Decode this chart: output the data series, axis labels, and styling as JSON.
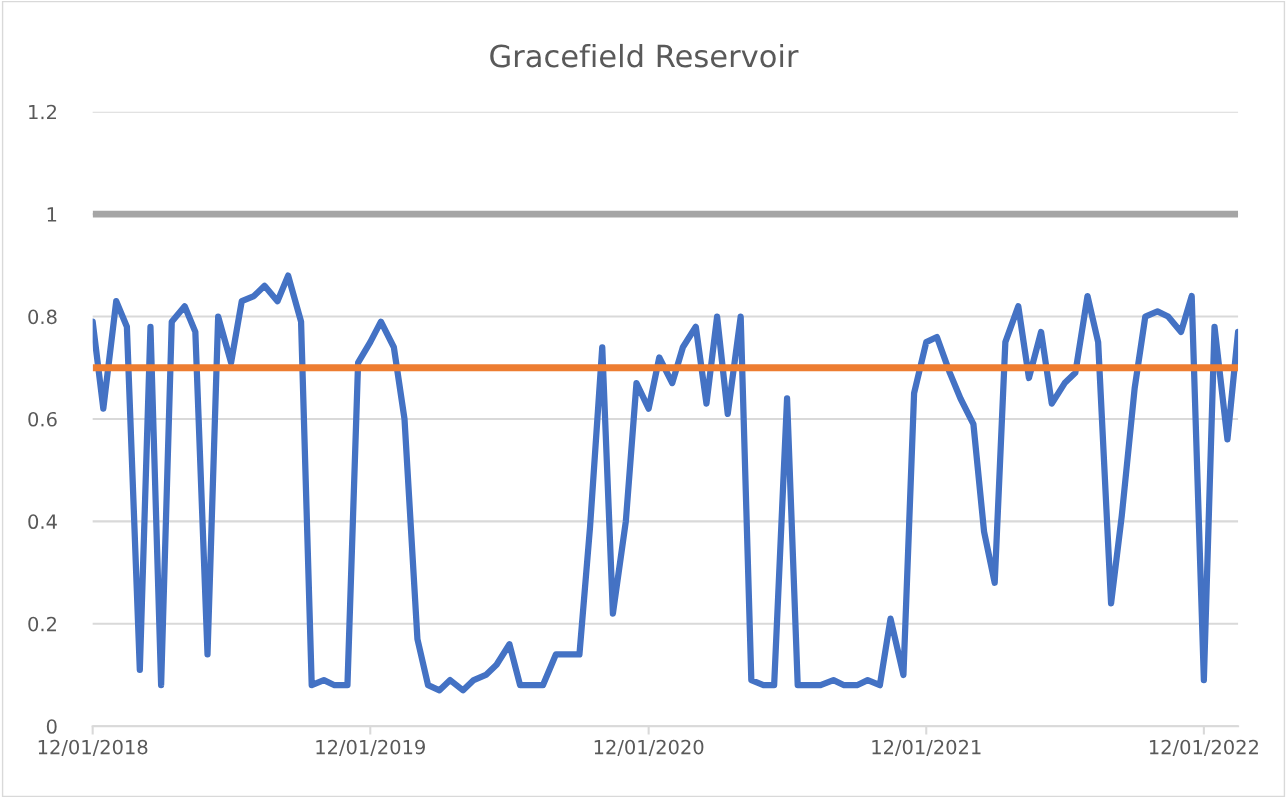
{
  "chart_data": {
    "type": "line",
    "title": "Gracefield Reservoir",
    "x": [
      "2018-12-01",
      "2018-12-15",
      "2019-01-01",
      "2019-01-15",
      "2019-02-01",
      "2019-02-15",
      "2019-03-01",
      "2019-03-15",
      "2019-04-01",
      "2019-04-15",
      "2019-05-01",
      "2019-05-15",
      "2019-06-01",
      "2019-06-15",
      "2019-07-01",
      "2019-07-15",
      "2019-08-01",
      "2019-08-15",
      "2019-09-01",
      "2019-09-15",
      "2019-10-01",
      "2019-10-15",
      "2019-11-01",
      "2019-11-15",
      "2019-12-01",
      "2019-12-15",
      "2020-01-01",
      "2020-01-15",
      "2020-02-01",
      "2020-02-15",
      "2020-03-01",
      "2020-03-15",
      "2020-04-01",
      "2020-04-15",
      "2020-05-01",
      "2020-05-15",
      "2020-06-01",
      "2020-06-15",
      "2020-07-01",
      "2020-07-15",
      "2020-08-01",
      "2020-08-15",
      "2020-09-01",
      "2020-09-15",
      "2020-10-01",
      "2020-10-15",
      "2020-11-01",
      "2020-11-15",
      "2020-12-01",
      "2020-12-15",
      "2021-01-01",
      "2021-01-15",
      "2021-02-01",
      "2021-02-15",
      "2021-03-01",
      "2021-03-15",
      "2021-04-01",
      "2021-04-15",
      "2021-05-01",
      "2021-05-15",
      "2021-06-01",
      "2021-06-15",
      "2021-07-01",
      "2021-07-15",
      "2021-08-01",
      "2021-08-15",
      "2021-09-01",
      "2021-09-15",
      "2021-10-01",
      "2021-10-15",
      "2021-11-01",
      "2021-11-15",
      "2021-12-01",
      "2021-12-15",
      "2022-01-01",
      "2022-01-15",
      "2022-02-01",
      "2022-02-15",
      "2022-03-01",
      "2022-03-15",
      "2022-04-01",
      "2022-04-15",
      "2022-05-01",
      "2022-05-15",
      "2022-06-01",
      "2022-06-15",
      "2022-07-01",
      "2022-07-15",
      "2022-08-01",
      "2022-08-15",
      "2022-09-01",
      "2022-09-15",
      "2022-10-01",
      "2022-10-15",
      "2022-11-01",
      "2022-11-15",
      "2022-12-01",
      "2022-12-15",
      "2023-01-01",
      "2023-01-15"
    ],
    "series": [
      {
        "color": "#4472c4",
        "values": [
          0.79,
          0.62,
          0.83,
          0.78,
          0.11,
          0.78,
          0.08,
          0.79,
          0.82,
          0.77,
          0.14,
          0.8,
          0.71,
          0.83,
          0.84,
          0.86,
          0.83,
          0.88,
          0.79,
          0.08,
          0.09,
          0.08,
          0.08,
          0.71,
          0.75,
          0.79,
          0.74,
          0.6,
          0.17,
          0.08,
          0.07,
          0.09,
          0.07,
          0.09,
          0.1,
          0.12,
          0.16,
          0.08,
          0.08,
          0.08,
          0.14,
          0.14,
          0.14,
          0.39,
          0.74,
          0.22,
          0.4,
          0.67,
          0.62,
          0.72,
          0.67,
          0.74,
          0.78,
          0.63,
          0.8,
          0.61,
          0.8,
          0.09,
          0.08,
          0.08,
          0.64,
          0.08,
          0.08,
          0.08,
          0.09,
          0.08,
          0.08,
          0.09,
          0.08,
          0.21,
          0.1,
          0.65,
          0.75,
          0.76,
          0.69,
          0.64,
          0.59,
          0.38,
          0.28,
          0.75,
          0.82,
          0.68,
          0.77,
          0.63,
          0.67,
          0.69,
          0.84,
          0.75,
          0.24,
          0.41,
          0.66,
          0.8,
          0.81,
          0.8,
          0.77,
          0.84,
          0.09,
          0.78,
          0.56,
          0.77
        ]
      }
    ],
    "ref_lines": [
      {
        "axis": "y",
        "value": 1,
        "color": "#a5a5a5"
      },
      {
        "axis": "y",
        "value": 0.7,
        "color": "#ed7d31"
      }
    ],
    "xlim": [
      "2018-12-01",
      "2023-01-15"
    ],
    "xticks": [
      {
        "value": "2018-12-01",
        "label": "12/01/2018"
      },
      {
        "value": "2019-12-01",
        "label": "12/01/2019"
      },
      {
        "value": "2020-12-01",
        "label": "12/01/2020"
      },
      {
        "value": "2021-12-01",
        "label": "12/01/2021"
      },
      {
        "value": "2022-12-01",
        "label": "12/01/2022"
      }
    ],
    "ylim": [
      0,
      1.2
    ],
    "yticks": [
      0,
      0.2,
      0.4,
      0.6,
      0.8,
      1,
      1.2
    ],
    "grid": "y",
    "marker": "none",
    "line_style": "solid"
  }
}
